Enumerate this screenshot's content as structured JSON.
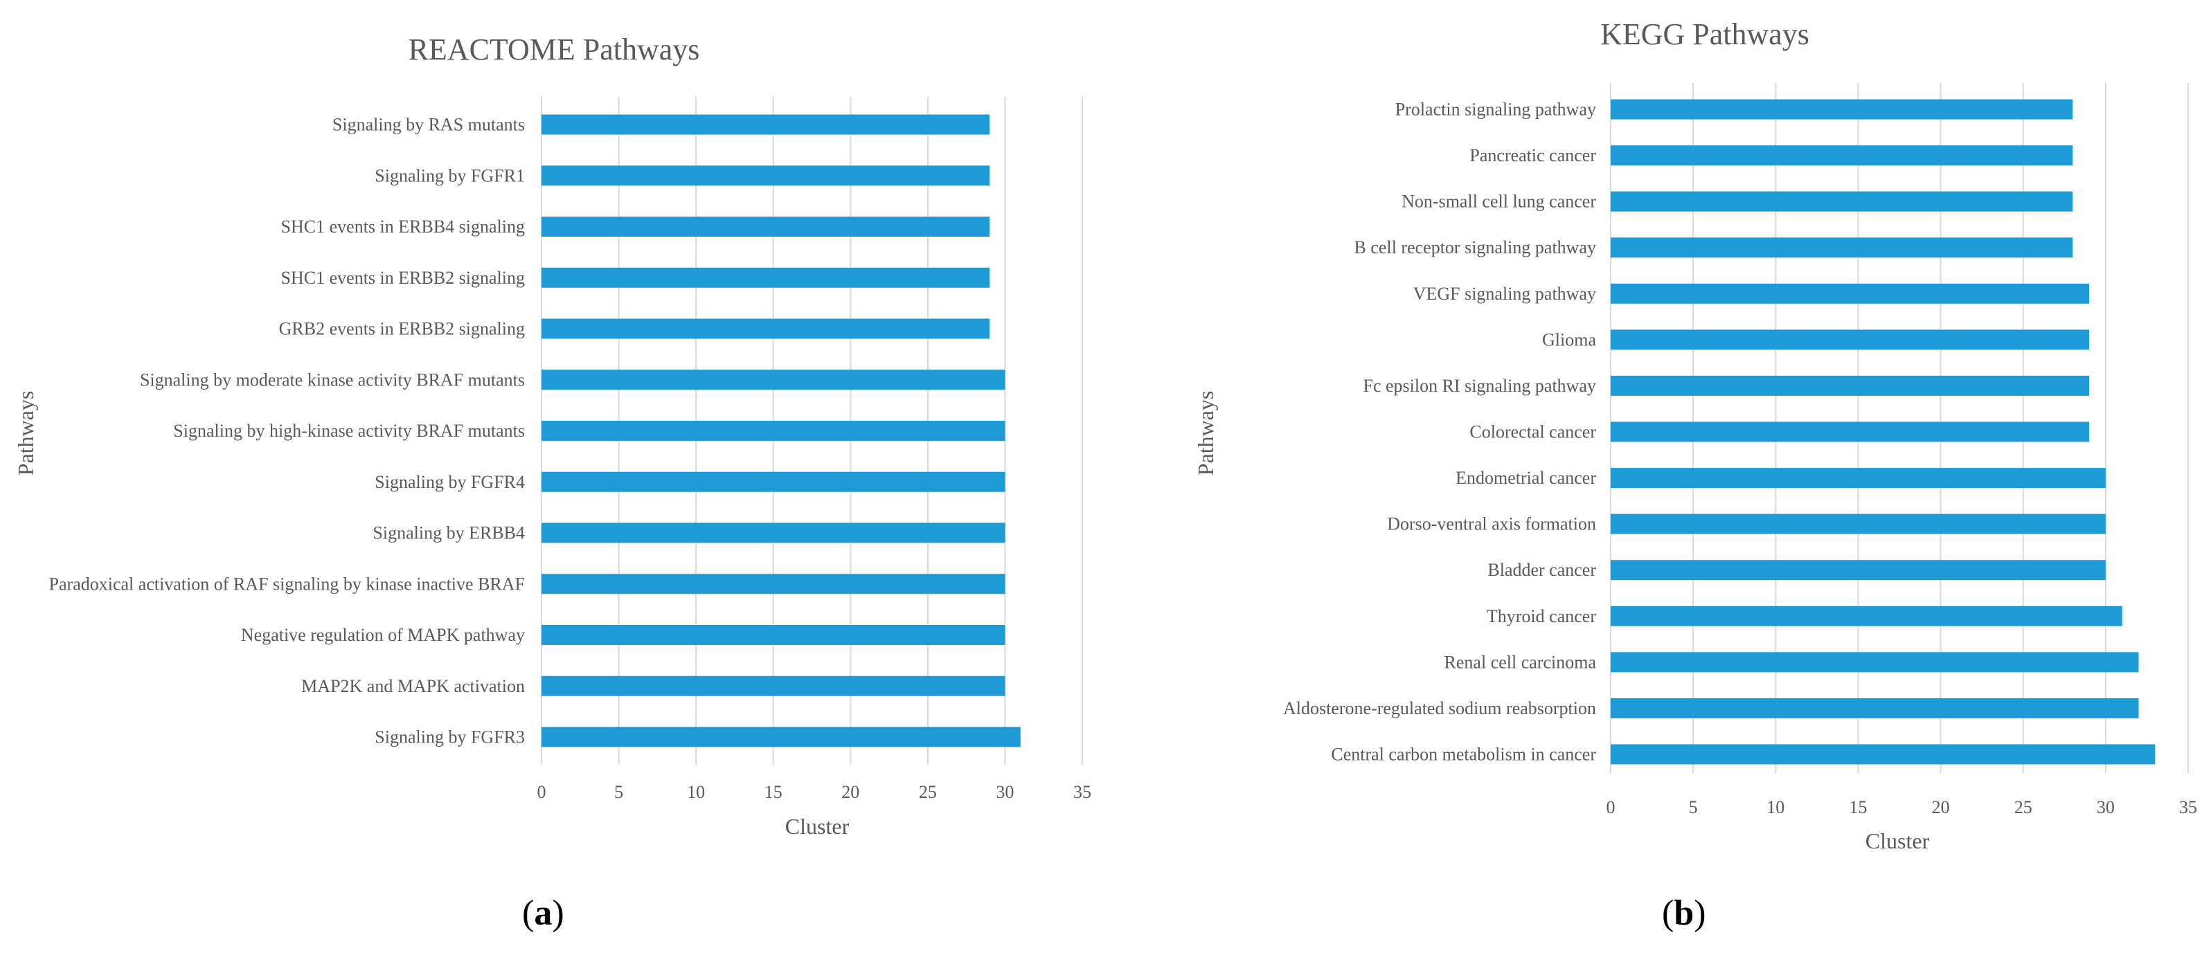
{
  "chart_data": [
    {
      "id": "a",
      "type": "bar",
      "orientation": "horizontal",
      "title": "REACTOME Pathways",
      "xlabel": "Cluster",
      "ylabel": "Pathways",
      "xlim": [
        0,
        35
      ],
      "xticks": [
        0,
        5,
        10,
        15,
        20,
        25,
        30,
        35
      ],
      "grid": "vertical",
      "legend": "none",
      "bar_color": "#1e9bd7",
      "categories": [
        "Signaling by RAS mutants",
        "Signaling by FGFR1",
        "SHC1 events in ERBB4 signaling",
        "SHC1 events in ERBB2 signaling",
        "GRB2 events in ERBB2 signaling",
        "Signaling by moderate kinase activity BRAF mutants",
        "Signaling by high-kinase activity BRAF mutants",
        "Signaling by FGFR4",
        "Signaling by ERBB4",
        "Paradoxical activation of RAF signaling by kinase inactive BRAF",
        "Negative regulation of MAPK pathway",
        "MAP2K and MAPK activation",
        "Signaling by FGFR3"
      ],
      "values": [
        29,
        29,
        29,
        29,
        29,
        30,
        30,
        30,
        30,
        30,
        30,
        30,
        31
      ]
    },
    {
      "id": "b",
      "type": "bar",
      "orientation": "horizontal",
      "title": "KEGG Pathways",
      "xlabel": "Cluster",
      "ylabel": "Pathways",
      "xlim": [
        0,
        35
      ],
      "xticks": [
        0,
        5,
        10,
        15,
        20,
        25,
        30,
        35
      ],
      "grid": "vertical",
      "legend": "none",
      "bar_color": "#1e9bd7",
      "categories": [
        "Prolactin signaling pathway",
        "Pancreatic cancer",
        "Non-small cell lung cancer",
        "B cell receptor signaling pathway",
        "VEGF signaling pathway",
        "Glioma",
        "Fc epsilon RI signaling pathway",
        "Colorectal cancer",
        "Endometrial cancer",
        "Dorso-ventral axis formation",
        "Bladder cancer",
        "Thyroid cancer",
        "Renal cell carcinoma",
        "Aldosterone-regulated sodium reabsorption",
        "Central carbon metabolism in cancer"
      ],
      "values": [
        28,
        28,
        28,
        28,
        29,
        29,
        29,
        29,
        30,
        30,
        30,
        31,
        32,
        32,
        33
      ]
    }
  ],
  "panel_labels": {
    "a": "a",
    "b": "b"
  }
}
